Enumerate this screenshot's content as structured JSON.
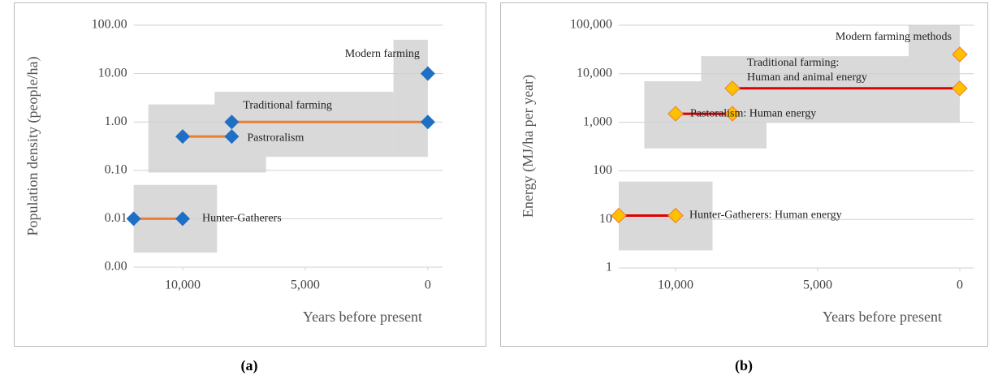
{
  "chart_data": [
    {
      "type": "line",
      "caption": "(a)",
      "y_label": "Population density (people/ha)",
      "x_label": "Years before present",
      "yscale": "log",
      "xlim": [
        12000,
        -600
      ],
      "ylim": [
        0.001,
        100
      ],
      "xticks": [
        {
          "value": 10000,
          "label": "10,000"
        },
        {
          "value": 5000,
          "label": "5,000"
        },
        0
      ],
      "yticks": [
        {
          "value": 0.001,
          "label": "0.00"
        },
        {
          "value": 0.01,
          "label": "0.01"
        },
        {
          "value": 0.1,
          "label": "0.10"
        },
        {
          "value": 1,
          "label": "1.00"
        },
        {
          "value": 10,
          "label": "10.00"
        },
        {
          "value": 100,
          "label": "100.00"
        }
      ],
      "grid": true,
      "range_color": "#d9d9d9",
      "ranges": [
        {
          "x": [
            12000,
            8600
          ],
          "y": [
            0.002,
            0.05
          ]
        },
        {
          "x": [
            11400,
            6600
          ],
          "y": [
            0.09,
            2.3
          ]
        },
        {
          "x": [
            8700,
            1400
          ],
          "y": [
            0.19,
            4.2
          ]
        },
        {
          "x": [
            1400,
            0
          ],
          "y": [
            0.19,
            50
          ]
        }
      ],
      "series": [
        {
          "name": "Hunter-Gatherers",
          "color": "#ed7d31",
          "marker_color": "#1f6fc5",
          "x": [
            12000,
            10000
          ],
          "values": [
            0.01,
            0.01
          ]
        },
        {
          "name": "Pastroralism",
          "color": "#ed7d31",
          "marker_color": "#1f6fc5",
          "x": [
            10000,
            8000
          ],
          "values": [
            0.5,
            0.5
          ]
        },
        {
          "name": "Traditional farming",
          "color": "#ed7d31",
          "marker_color": "#1f6fc5",
          "x": [
            8000,
            0
          ],
          "values": [
            1,
            1
          ]
        },
        {
          "name": "Modern farming",
          "color": "#ed7d31",
          "marker_color": "#1f6fc5",
          "x": [
            0
          ],
          "values": [
            10
          ]
        }
      ]
    },
    {
      "type": "line",
      "caption": "(b)",
      "y_label": "Energy (MJ/ha per year)",
      "x_label": "Years before present",
      "yscale": "log",
      "xlim": [
        12000,
        -500
      ],
      "ylim": [
        1,
        100000
      ],
      "xticks": [
        {
          "value": 10000,
          "label": "10,000"
        },
        {
          "value": 5000,
          "label": "5,000"
        },
        0
      ],
      "yticks": [
        1,
        10,
        100,
        {
          "value": 1000,
          "label": "1,000"
        },
        {
          "value": 10000,
          "label": "10,000"
        },
        {
          "value": 100000,
          "label": "100,000"
        }
      ],
      "grid": true,
      "range_color": "#d9d9d9",
      "ranges": [
        {
          "x": [
            12000,
            8700
          ],
          "y": [
            2.3,
            60
          ]
        },
        {
          "x": [
            11100,
            6800
          ],
          "y": [
            290,
            7000
          ]
        },
        {
          "x": [
            9100,
            1800
          ],
          "y": [
            1000,
            23000
          ]
        },
        {
          "x": [
            1800,
            0
          ],
          "y": [
            1000,
            100000
          ]
        }
      ],
      "series": [
        {
          "name": "Hunter-Gatherers: Human energy",
          "color": "#e00000",
          "marker_color": "#ffc000",
          "x": [
            12000,
            10000
          ],
          "values": [
            12,
            12
          ]
        },
        {
          "name": "Pastoralism: Human energy",
          "color": "#e00000",
          "marker_color": "#ffc000",
          "x": [
            10000,
            8000
          ],
          "values": [
            1500,
            1500
          ]
        },
        {
          "name": [
            "Traditional farming:",
            "Human and animal energy"
          ],
          "color": "#e00000",
          "marker_color": "#ffc000",
          "x": [
            8000,
            0
          ],
          "values": [
            5000,
            5000
          ]
        },
        {
          "name": "Modern farming methods",
          "color": "#e00000",
          "marker_color": "#ffc000",
          "x": [
            0
          ],
          "values": [
            25000
          ]
        }
      ]
    }
  ]
}
